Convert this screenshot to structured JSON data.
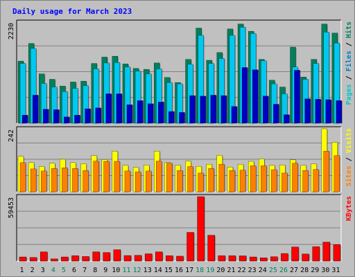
{
  "chart_data": {
    "type": "bar",
    "title": "Daily usage for March 2023",
    "days": [
      "1",
      "2",
      "3",
      "4",
      "5",
      "6",
      "7",
      "8",
      "9",
      "10",
      "11",
      "12",
      "13",
      "14",
      "15",
      "16",
      "17",
      "18",
      "19",
      "20",
      "21",
      "22",
      "23",
      "24",
      "25",
      "26",
      "27",
      "28",
      "29",
      "30",
      "31"
    ],
    "weekend_days": [
      "4",
      "5",
      "11",
      "12",
      "18",
      "19",
      "25",
      "26"
    ],
    "panels": [
      {
        "id": "hits",
        "max_label": "2230",
        "max": 2230,
        "side_labels": [
          {
            "text": "Pages",
            "color": "#00c8c8"
          },
          {
            "text": " / ",
            "color": "#000000"
          },
          {
            "text": "Files",
            "color": "#0080c0"
          },
          {
            "text": " / ",
            "color": "#000000"
          },
          {
            "text": "Hits",
            "color": "#00805c"
          }
        ],
        "series": [
          {
            "name": "Hits",
            "color": "#00805c",
            "values": [
              1370,
              1760,
              1090,
              970,
              820,
              910,
              930,
              1320,
              1460,
              1480,
              1310,
              1210,
              1190,
              1330,
              1010,
              900,
              1410,
              2100,
              1390,
              1560,
              2080,
              2190,
              2030,
              1410,
              950,
              800,
              1680,
              1020,
              1410,
              2190,
              1990
            ]
          },
          {
            "name": "Files",
            "color": "#00c8f0",
            "values": [
              1320,
              1650,
              880,
              800,
              700,
              770,
              830,
              1200,
              1330,
              1340,
              1240,
              1150,
              1090,
              1200,
              900,
              870,
              1300,
              1940,
              1320,
              1430,
              1940,
              2120,
              1980,
              1380,
              870,
              650,
              1240,
              970,
              1320,
              2010,
              1770
            ]
          },
          {
            "name": "Pages",
            "color": "#0000c0",
            "values": [
              180,
              620,
              310,
              300,
              140,
              180,
              320,
              340,
              650,
              650,
              410,
              500,
              430,
              470,
              260,
              240,
              610,
              600,
              620,
              610,
              370,
              1230,
              1180,
              600,
              420,
              190,
              1170,
              540,
              530,
              520,
              500
            ]
          }
        ]
      },
      {
        "id": "visits",
        "max_label": "242",
        "max": 242,
        "side_labels": [
          {
            "text": "Sites",
            "color": "#ff8000"
          },
          {
            "text": " / ",
            "color": "#000000"
          },
          {
            "text": "Visits",
            "color": "#ffff00"
          }
        ],
        "series": [
          {
            "name": "Visits",
            "color": "#ffff00",
            "values": [
              136,
              112,
              97,
              110,
              125,
              112,
              108,
              139,
              124,
              156,
              102,
              94,
              103,
              156,
              112,
              102,
              118,
              98,
              106,
              140,
              95,
              106,
              117,
              126,
              102,
              103,
              123,
              102,
              107,
              242,
              190
            ]
          },
          {
            "name": "Sites",
            "color": "#ff8000",
            "values": [
              112,
              88,
              80,
              90,
              92,
              90,
              82,
              118,
              117,
              117,
              80,
              77,
              80,
              118,
              110,
              82,
              97,
              72,
              90,
              106,
              82,
              83,
              100,
              100,
              85,
              72,
              110,
              82,
              86,
              156,
              139
            ]
          }
        ]
      },
      {
        "id": "kbytes",
        "max_label": "59453",
        "max": 59453,
        "side_labels": [
          {
            "text": "KBytes",
            "color": "#ff0000"
          }
        ],
        "series": [
          {
            "name": "KBytes",
            "color": "#ff0000",
            "values": [
              3800,
              3300,
              8500,
              2000,
              3800,
              5000,
              4200,
              8500,
              7900,
              10500,
              5100,
              5300,
              6700,
              8500,
              5000,
              4500,
              26500,
              59453,
              23800,
              5000,
              5000,
              4800,
              3800,
              3000,
              4000,
              7000,
              13000,
              6500,
              13300,
              17500,
              15200
            ]
          }
        ]
      }
    ]
  }
}
